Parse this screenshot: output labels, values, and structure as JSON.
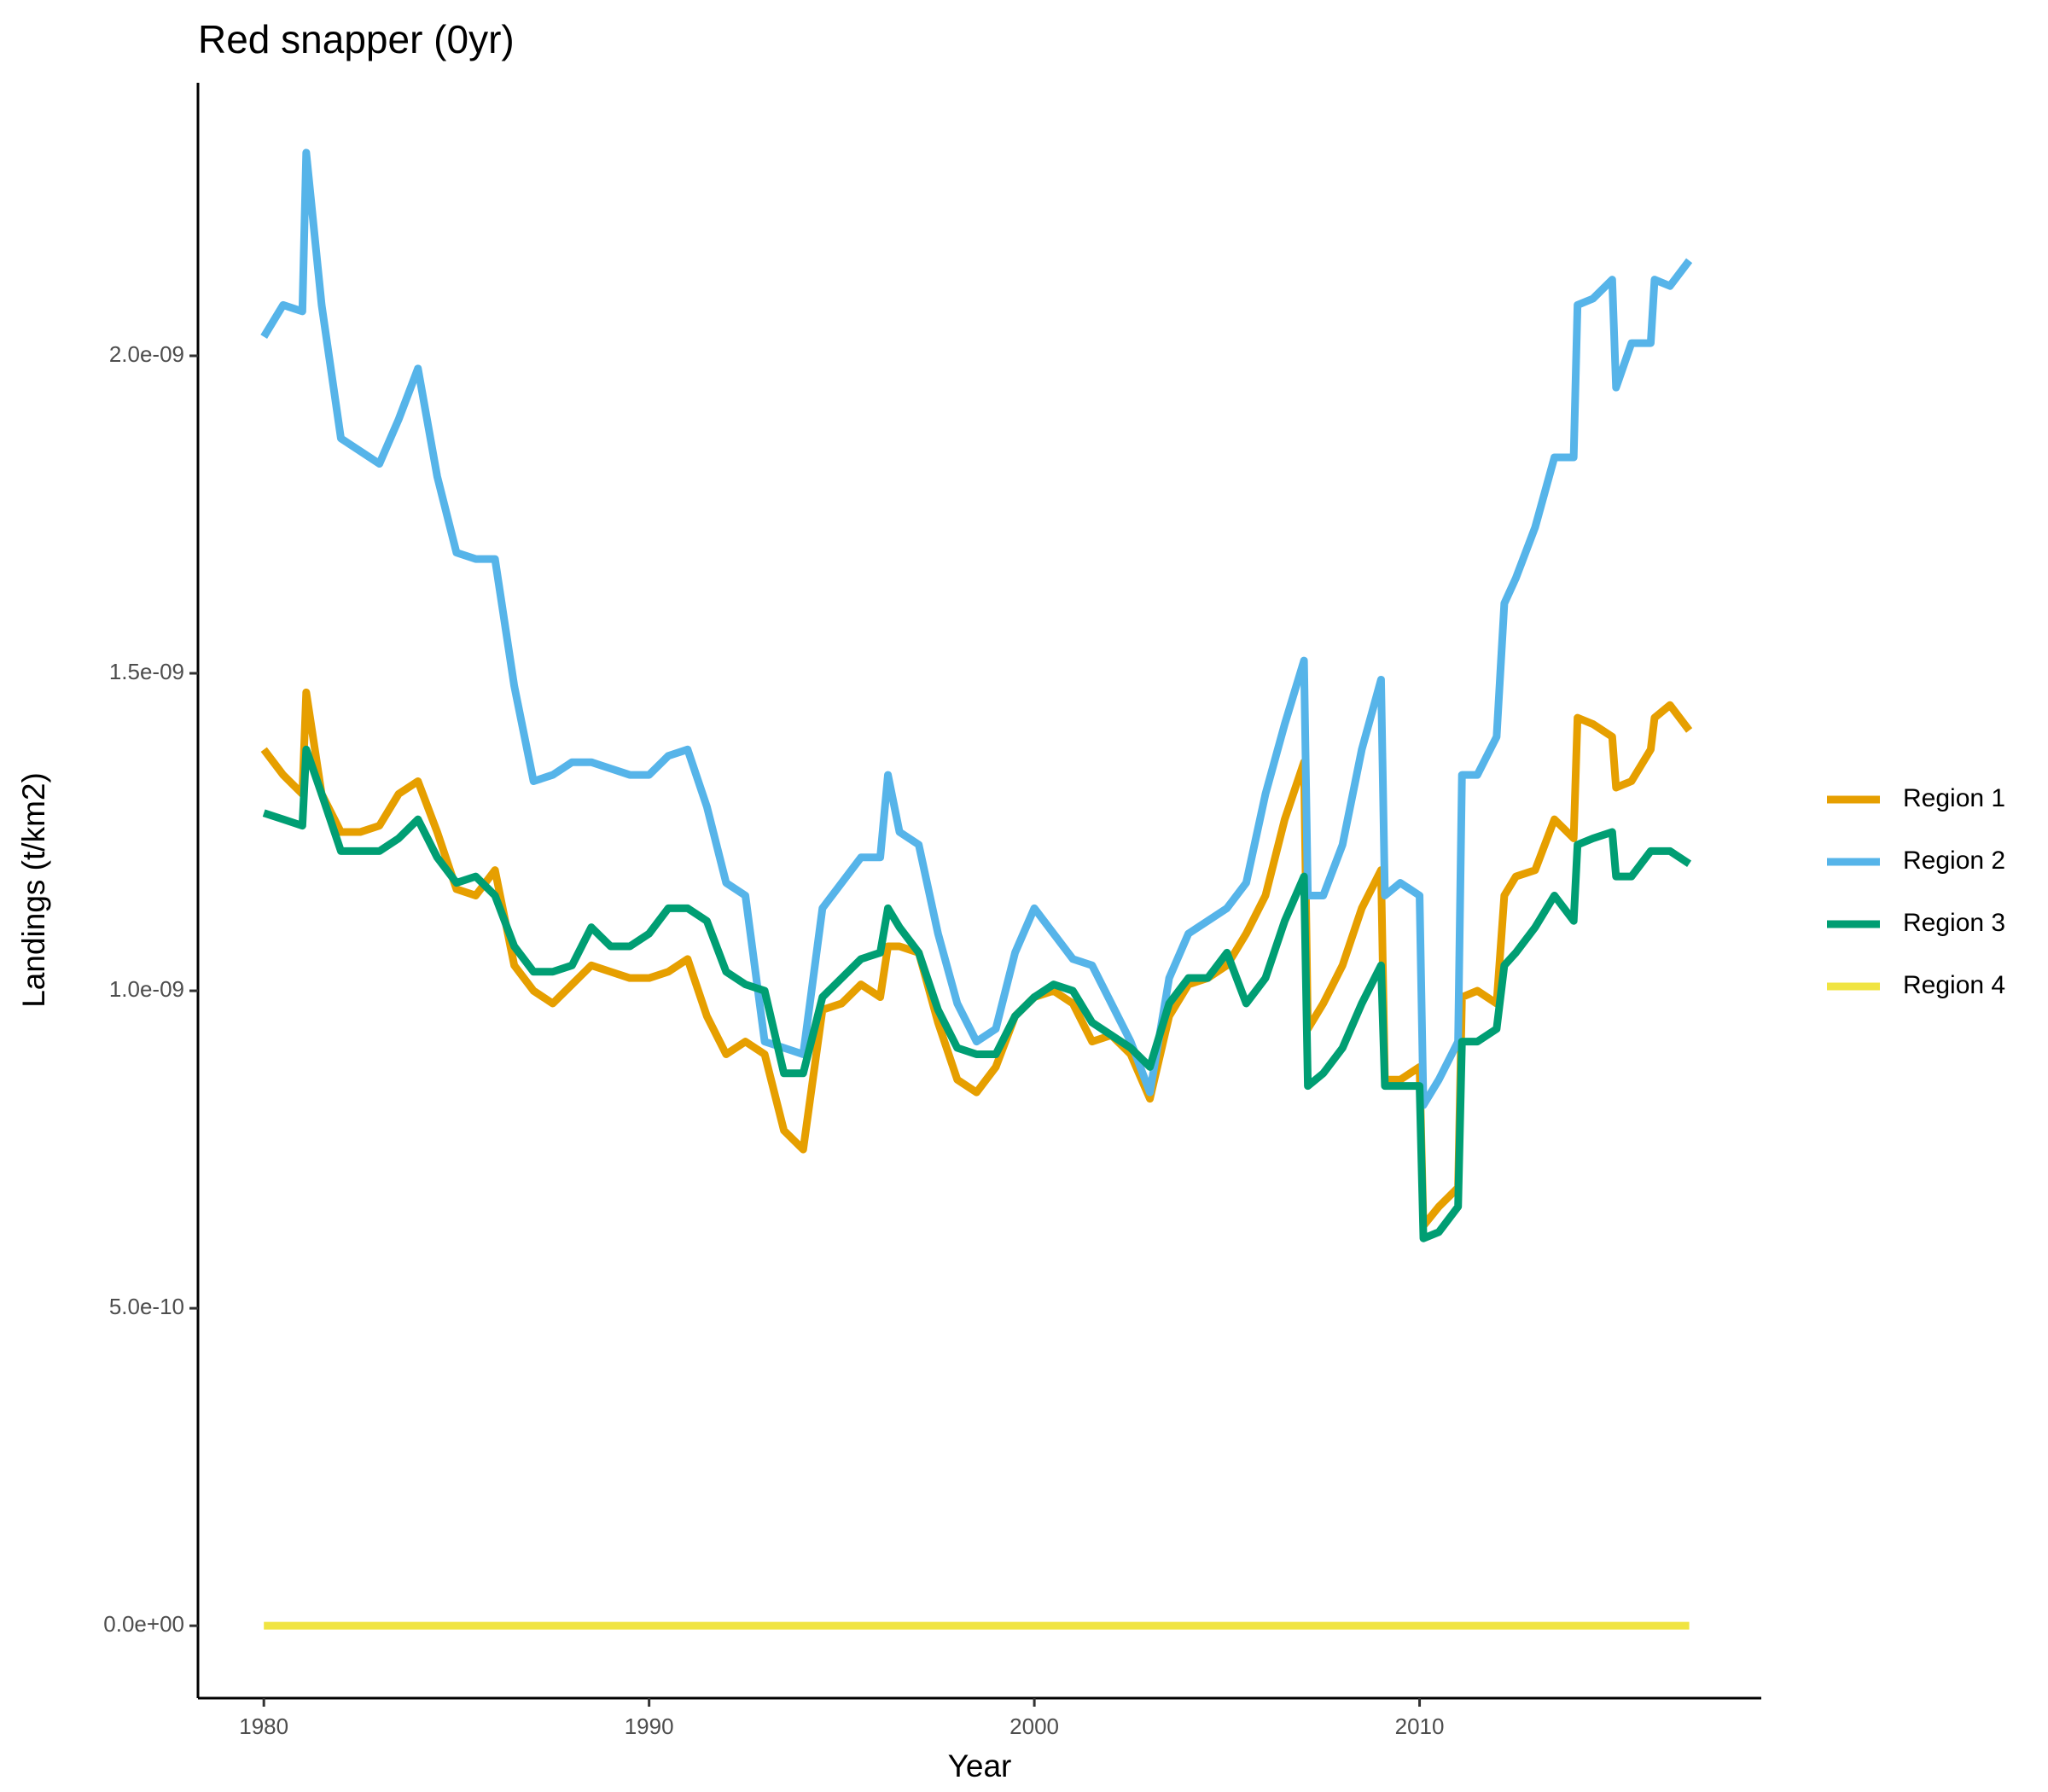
{
  "chart_data": {
    "type": "line",
    "title": "Red snapper (0yr)",
    "xlabel": "Year",
    "ylabel": "Landings (t/km2)",
    "x": [
      1980,
      1980.5,
      1981,
      1981.1,
      1981.5,
      1982,
      1982.5,
      1983,
      1983.5,
      1984,
      1984.5,
      1985,
      1985.5,
      1986,
      1986.5,
      1987,
      1987.5,
      1988,
      1988.5,
      1989,
      1989.5,
      1990,
      1990.5,
      1991,
      1991.5,
      1992,
      1992.5,
      1993,
      1993.5,
      1994,
      1994.5,
      1995,
      1995.5,
      1996,
      1996.2,
      1996.5,
      1997,
      1997.5,
      1998,
      1998.5,
      1999,
      1999.5,
      2000,
      2000.5,
      2001,
      2001.5,
      2002,
      2002.5,
      2003,
      2003.5,
      2004,
      2004.5,
      2005,
      2005.5,
      2006,
      2006.5,
      2007,
      2007.1,
      2007.5,
      2008,
      2008.5,
      2009,
      2009.1,
      2009.5,
      2010,
      2010.1,
      2010.5,
      2011,
      2011.1,
      2011.5,
      2012,
      2012.2,
      2012.5,
      2013,
      2013.5,
      2014,
      2014.1,
      2014.5,
      2015,
      2015.1,
      2015.5,
      2016,
      2016.1,
      2016.5,
      2017
    ],
    "series": [
      {
        "name": "Region 1",
        "color": "#E69F00",
        "values": [
          1.38e-09,
          1.34e-09,
          1.31e-09,
          1.47e-09,
          1.31e-09,
          1.25e-09,
          1.25e-09,
          1.26e-09,
          1.31e-09,
          1.33e-09,
          1.25e-09,
          1.16e-09,
          1.15e-09,
          1.19e-09,
          1.04e-09,
          1e-09,
          9.8e-10,
          1.01e-09,
          1.04e-09,
          1.03e-09,
          1.02e-09,
          1.02e-09,
          1.03e-09,
          1.05e-09,
          9.6e-10,
          9e-10,
          9.2e-10,
          9e-10,
          7.8e-10,
          7.5e-10,
          9.7e-10,
          9.8e-10,
          1.01e-09,
          9.9e-10,
          1.07e-09,
          1.07e-09,
          1.06e-09,
          9.5e-10,
          8.6e-10,
          8.4e-10,
          8.8e-10,
          9.6e-10,
          9.9e-10,
          1e-09,
          9.8e-10,
          9.2e-10,
          9.3e-10,
          9e-10,
          8.3e-10,
          9.6e-10,
          1.01e-09,
          1.02e-09,
          1.04e-09,
          1.09e-09,
          1.15e-09,
          1.27e-09,
          1.36e-09,
          9.4e-10,
          9.8e-10,
          1.04e-09,
          1.13e-09,
          1.19e-09,
          8.6e-10,
          8.6e-10,
          8.8e-10,
          6.3e-10,
          6.6e-10,
          6.9e-10,
          9.9e-10,
          1e-09,
          9.8e-10,
          1.15e-09,
          1.18e-09,
          1.19e-09,
          1.27e-09,
          1.24e-09,
          1.43e-09,
          1.42e-09,
          1.4e-09,
          1.32e-09,
          1.33e-09,
          1.38e-09,
          1.43e-09,
          1.45e-09,
          1.41e-09
        ]
      },
      {
        "name": "Region 2",
        "color": "#56B4E9",
        "values": [
          2.03e-09,
          2.08e-09,
          2.07e-09,
          2.32e-09,
          2.08e-09,
          1.87e-09,
          1.85e-09,
          1.83e-09,
          1.9e-09,
          1.98e-09,
          1.81e-09,
          1.69e-09,
          1.68e-09,
          1.68e-09,
          1.48e-09,
          1.33e-09,
          1.34e-09,
          1.36e-09,
          1.36e-09,
          1.35e-09,
          1.34e-09,
          1.34e-09,
          1.37e-09,
          1.38e-09,
          1.29e-09,
          1.17e-09,
          1.15e-09,
          9.2e-10,
          9.1e-10,
          9e-10,
          1.13e-09,
          1.17e-09,
          1.21e-09,
          1.21e-09,
          1.34e-09,
          1.25e-09,
          1.23e-09,
          1.09e-09,
          9.8e-10,
          9.2e-10,
          9.4e-10,
          1.06e-09,
          1.13e-09,
          1.09e-09,
          1.05e-09,
          1.04e-09,
          9.8e-10,
          9.2e-10,
          8.4e-10,
          1.02e-09,
          1.09e-09,
          1.11e-09,
          1.13e-09,
          1.17e-09,
          1.31e-09,
          1.42e-09,
          1.52e-09,
          1.15e-09,
          1.15e-09,
          1.23e-09,
          1.38e-09,
          1.49e-09,
          1.15e-09,
          1.17e-09,
          1.15e-09,
          8.2e-10,
          8.6e-10,
          9.2e-10,
          1.34e-09,
          1.34e-09,
          1.4e-09,
          1.61e-09,
          1.65e-09,
          1.73e-09,
          1.84e-09,
          1.84e-09,
          2.08e-09,
          2.09e-09,
          2.12e-09,
          1.95e-09,
          2.02e-09,
          2.02e-09,
          2.12e-09,
          2.11e-09,
          2.15e-09
        ]
      },
      {
        "name": "Region 3",
        "color": "#009E73",
        "values": [
          1.28e-09,
          1.27e-09,
          1.26e-09,
          1.38e-09,
          1.31e-09,
          1.22e-09,
          1.22e-09,
          1.22e-09,
          1.24e-09,
          1.27e-09,
          1.21e-09,
          1.17e-09,
          1.18e-09,
          1.15e-09,
          1.07e-09,
          1.03e-09,
          1.03e-09,
          1.04e-09,
          1.1e-09,
          1.07e-09,
          1.07e-09,
          1.09e-09,
          1.13e-09,
          1.13e-09,
          1.11e-09,
          1.03e-09,
          1.01e-09,
          1e-09,
          8.7e-10,
          8.7e-10,
          9.9e-10,
          1.02e-09,
          1.05e-09,
          1.06e-09,
          1.13e-09,
          1.1e-09,
          1.06e-09,
          9.7e-10,
          9.1e-10,
          9e-10,
          9e-10,
          9.6e-10,
          9.9e-10,
          1.01e-09,
          1e-09,
          9.5e-10,
          9.3e-10,
          9.1e-10,
          8.8e-10,
          9.8e-10,
          1.02e-09,
          1.02e-09,
          1.06e-09,
          9.8e-10,
          1.02e-09,
          1.11e-09,
          1.18e-09,
          8.5e-10,
          8.7e-10,
          9.1e-10,
          9.8e-10,
          1.04e-09,
          8.5e-10,
          8.5e-10,
          8.5e-10,
          6.1e-10,
          6.2e-10,
          6.6e-10,
          9.2e-10,
          9.2e-10,
          9.4e-10,
          1.04e-09,
          1.06e-09,
          1.1e-09,
          1.15e-09,
          1.11e-09,
          1.23e-09,
          1.24e-09,
          1.25e-09,
          1.18e-09,
          1.18e-09,
          1.22e-09,
          1.22e-09,
          1.22e-09,
          1.2e-09
        ]
      },
      {
        "name": "Region 4",
        "color": "#F0E442",
        "values": [
          0,
          0,
          0,
          0,
          0,
          0,
          0,
          0,
          0,
          0,
          0,
          0,
          0,
          0,
          0,
          0,
          0,
          0,
          0,
          0,
          0,
          0,
          0,
          0,
          0,
          0,
          0,
          0,
          0,
          0,
          0,
          0,
          0,
          0,
          0,
          0,
          0,
          0,
          0,
          0,
          0,
          0,
          0,
          0,
          0,
          0,
          0,
          0,
          0,
          0,
          0,
          0,
          0,
          0,
          0,
          0,
          0,
          0,
          0,
          0,
          0,
          0,
          0,
          0,
          0,
          0,
          0,
          0,
          0,
          0,
          0,
          0,
          0,
          0,
          0,
          0,
          0,
          0,
          0,
          0,
          0,
          0,
          0,
          0,
          0
        ]
      }
    ],
    "xlim": [
      1978.29,
      2018.87
    ],
    "xticks": [
      1980,
      1990,
      2000,
      2010
    ],
    "ylim": [
      -1.14e-10,
      2.43e-09
    ],
    "yticks": [
      {
        "value": 0,
        "label": "0.0e+00"
      },
      {
        "value": 5e-10,
        "label": "5.0e-10"
      },
      {
        "value": 1e-09,
        "label": "1.0e-09"
      },
      {
        "value": 1.5e-09,
        "label": "1.5e-09"
      },
      {
        "value": 2e-09,
        "label": "2.0e-09"
      }
    ],
    "legend": "right"
  }
}
